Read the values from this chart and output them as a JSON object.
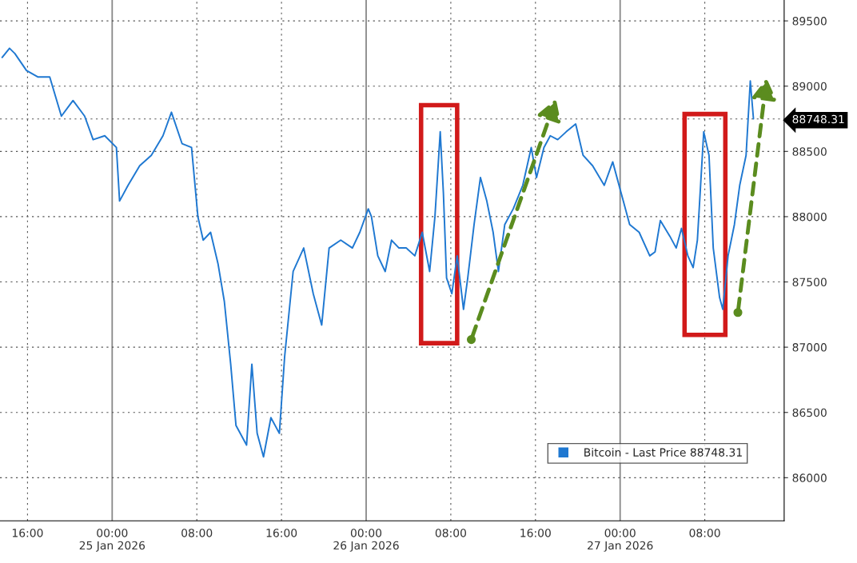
{
  "chart_data": {
    "type": "line",
    "x": [
      "2026-01-24T13:36",
      "2026-01-24T14:18",
      "2026-01-24T14:48",
      "2026-01-24T15:54",
      "2026-01-24T17:00",
      "2026-01-24T18:06",
      "2026-01-24T19:12",
      "2026-01-24T20:18",
      "2026-01-24T21:24",
      "2026-01-24T22:12",
      "2026-01-24T23:18",
      "2026-01-25T00:24",
      "2026-01-25T00:42",
      "2026-01-25T01:30",
      "2026-01-25T02:36",
      "2026-01-25T03:42",
      "2026-01-25T04:48",
      "2026-01-25T05:36",
      "2026-01-25T06:36",
      "2026-01-25T07:30",
      "2026-01-25T08:06",
      "2026-01-25T08:36",
      "2026-01-25T09:18",
      "2026-01-25T10:00",
      "2026-01-25T10:36",
      "2026-01-25T11:12",
      "2026-01-25T11:42",
      "2026-01-25T12:42",
      "2026-01-25T13:12",
      "2026-01-25T13:42",
      "2026-01-25T14:18",
      "2026-01-25T15:00",
      "2026-01-25T15:48",
      "2026-01-25T16:18",
      "2026-01-25T17:06",
      "2026-01-25T18:06",
      "2026-01-25T19:00",
      "2026-01-25T19:48",
      "2026-01-25T20:30",
      "2026-01-25T21:36",
      "2026-01-25T22:42",
      "2026-01-25T23:24",
      "2026-01-26T00:12",
      "2026-01-26T00:30",
      "2026-01-26T01:06",
      "2026-01-26T01:48",
      "2026-01-26T02:24",
      "2026-01-26T03:06",
      "2026-01-26T03:48",
      "2026-01-26T04:36",
      "2026-01-26T05:18",
      "2026-01-26T06:00",
      "2026-01-26T06:30",
      "2026-01-26T07:00",
      "2026-01-26T07:18",
      "2026-01-26T07:36",
      "2026-01-26T08:06",
      "2026-01-26T08:36",
      "2026-01-26T09:12",
      "2026-01-26T09:36",
      "2026-01-26T10:12",
      "2026-01-26T10:48",
      "2026-01-26T11:24",
      "2026-01-26T12:00",
      "2026-01-26T12:30",
      "2026-01-26T13:06",
      "2026-01-26T13:54",
      "2026-01-26T14:48",
      "2026-01-26T15:36",
      "2026-01-26T16:06",
      "2026-01-26T16:48",
      "2026-01-26T17:24",
      "2026-01-26T18:06",
      "2026-01-26T18:54",
      "2026-01-26T19:48",
      "2026-01-26T20:30",
      "2026-01-26T21:24",
      "2026-01-26T22:30",
      "2026-01-26T23:18",
      "2026-01-27T00:00",
      "2026-01-27T00:54",
      "2026-01-27T01:48",
      "2026-01-27T02:48",
      "2026-01-27T03:18",
      "2026-01-27T03:48",
      "2026-01-27T04:42",
      "2026-01-27T05:18",
      "2026-01-27T05:48",
      "2026-01-27T06:24",
      "2026-01-27T06:54",
      "2026-01-27T07:18",
      "2026-01-27T07:54",
      "2026-01-27T08:24",
      "2026-01-27T08:48",
      "2026-01-27T09:24",
      "2026-01-27T09:42",
      "2026-01-27T10:12",
      "2026-01-27T10:48",
      "2026-01-27T11:18",
      "2026-01-27T11:54",
      "2026-01-27T12:18",
      "2026-01-27T12:36"
    ],
    "series": [
      {
        "name": "Bitcoin - Last Price 88748.31",
        "color": "#1f78d1",
        "values": [
          89220,
          89290,
          89250,
          89120,
          89070,
          89070,
          88770,
          88890,
          88770,
          88590,
          88620,
          88530,
          88120,
          88240,
          88390,
          88470,
          88620,
          88800,
          88560,
          88530,
          88000,
          87820,
          87880,
          87640,
          87350,
          86870,
          86400,
          86250,
          86870,
          86340,
          86160,
          86460,
          86340,
          86930,
          87580,
          87760,
          87410,
          87170,
          87760,
          87820,
          87760,
          87880,
          88060,
          88000,
          87700,
          87580,
          87820,
          87760,
          87760,
          87700,
          87880,
          87580,
          88000,
          88650,
          88180,
          87530,
          87410,
          87700,
          87290,
          87530,
          87940,
          88300,
          88120,
          87880,
          87580,
          87940,
          88060,
          88240,
          88530,
          88300,
          88530,
          88620,
          88590,
          88650,
          88710,
          88470,
          88390,
          88240,
          88420,
          88210,
          87940,
          87880,
          87700,
          87730,
          87970,
          87850,
          87760,
          87910,
          87700,
          87610,
          87820,
          88650,
          88470,
          87760,
          87380,
          87290,
          87700,
          87940,
          88240,
          88470,
          89040,
          88750
        ]
      }
    ],
    "xlim": [
      "2026-01-24T13:24",
      "2026-01-27T15:30"
    ],
    "xticks": [
      {
        "value": "2026-01-24T16:00",
        "label": "16:00"
      },
      {
        "value": "2026-01-25T00:00",
        "label": "00:00\n25 Jan 2026"
      },
      {
        "value": "2026-01-25T08:00",
        "label": "08:00"
      },
      {
        "value": "2026-01-25T16:00",
        "label": "16:00"
      },
      {
        "value": "2026-01-26T00:00",
        "label": "00:00\n26 Jan 2026"
      },
      {
        "value": "2026-01-26T08:00",
        "label": "08:00"
      },
      {
        "value": "2026-01-26T16:00",
        "label": "16:00"
      },
      {
        "value": "2026-01-27T00:00",
        "label": "00:00\n27 Jan 2026"
      },
      {
        "value": "2026-01-27T08:00",
        "label": "08:00"
      }
    ],
    "ylim": [
      85670,
      89660
    ],
    "yticks": [
      86000,
      86500,
      87000,
      87500,
      88000,
      88500,
      89000,
      89500,
      {
        "value": 88748.31,
        "label": "88748.31"
      }
    ],
    "grid": true,
    "legend": "bottom right",
    "line_style": "solid"
  }
}
